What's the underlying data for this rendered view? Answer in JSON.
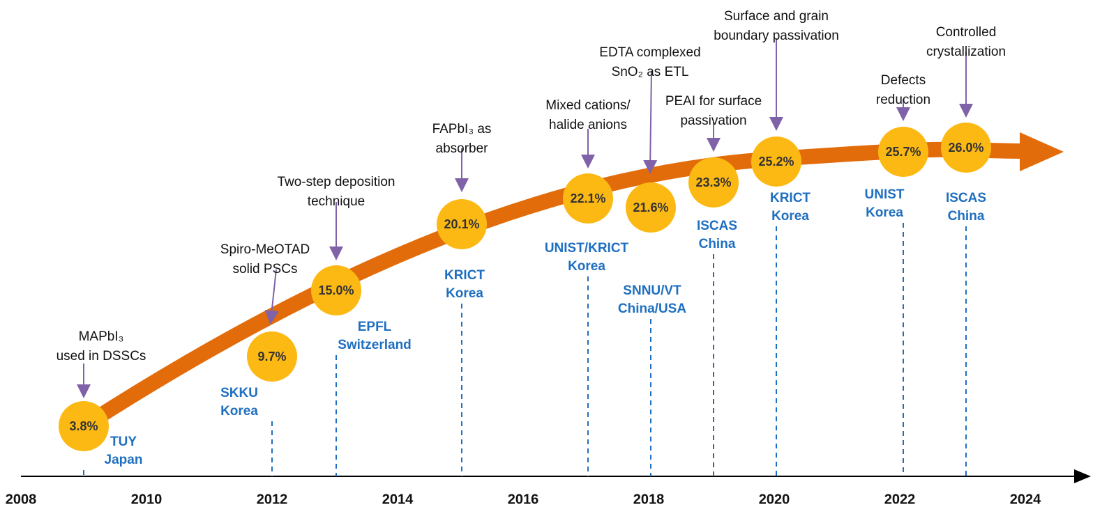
{
  "axis": {
    "ticks": [
      "2008",
      "2010",
      "2012",
      "2014",
      "2016",
      "2018",
      "2020",
      "2022",
      "2024"
    ]
  },
  "milestones": [
    {
      "efficiency": "3.8%",
      "institution": [
        "TUY",
        "Japan"
      ],
      "annotation": [
        "MAPbI₃",
        "used in DSSCs"
      ]
    },
    {
      "efficiency": "9.7%",
      "institution": [
        "SKKU",
        "Korea"
      ],
      "annotation": [
        "Spiro-MeOTAD",
        "solid PSCs"
      ]
    },
    {
      "efficiency": "15.0%",
      "institution": [
        "EPFL",
        "Switzerland"
      ],
      "annotation": [
        "Two-step deposition",
        "technique"
      ]
    },
    {
      "efficiency": "20.1%",
      "institution": [
        "KRICT",
        "Korea"
      ],
      "annotation": [
        "FAPbI₃ as",
        "absorber"
      ]
    },
    {
      "efficiency": "22.1%",
      "institution": [
        "UNIST/KRICT",
        "Korea"
      ],
      "annotation": [
        "Mixed cations/",
        "halide anions"
      ]
    },
    {
      "efficiency": "21.6%",
      "institution": [
        "SNNU/VT",
        "China/USA"
      ],
      "annotation": [
        "EDTA complexed",
        "SnO₂ as ETL"
      ]
    },
    {
      "efficiency": "23.3%",
      "institution": [
        "ISCAS",
        "China"
      ],
      "annotation": [
        "PEAI for surface",
        "passivation"
      ]
    },
    {
      "efficiency": "25.2%",
      "institution": [
        "KRICT",
        "Korea"
      ],
      "annotation": [
        "Surface and grain",
        "boundary passivation"
      ]
    },
    {
      "efficiency": "25.7%",
      "institution": [
        "UNIST",
        "Korea"
      ],
      "annotation": [
        "Defects",
        "reduction"
      ]
    },
    {
      "efficiency": "26.0%",
      "institution": [
        "ISCAS",
        "China"
      ],
      "annotation": [
        "Controlled",
        "crystallization"
      ]
    }
  ]
}
